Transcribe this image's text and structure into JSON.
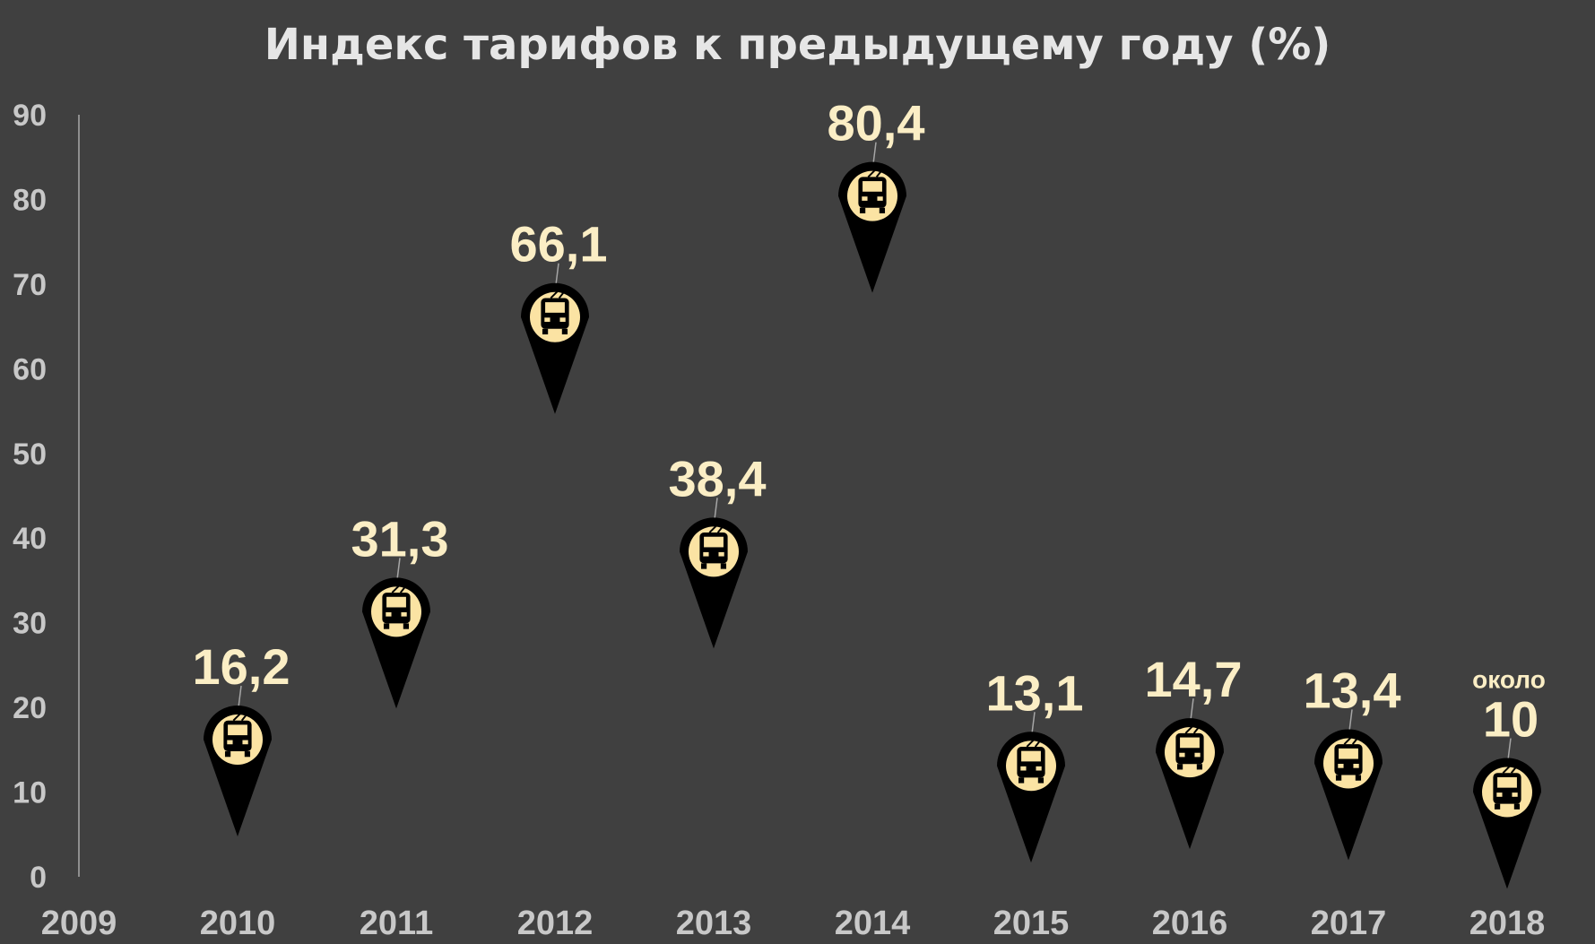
{
  "chart_data": {
    "type": "scatter",
    "title": "Индекс тарифов к предыдущему году (%)",
    "xlabel": "",
    "ylabel": "",
    "ylim": [
      0,
      90
    ],
    "y_ticks": [
      "0",
      "10",
      "20",
      "30",
      "40",
      "50",
      "60",
      "70",
      "80",
      "90"
    ],
    "x_ticks": [
      "2009",
      "2010",
      "2011",
      "2012",
      "2013",
      "2014",
      "2015",
      "2016",
      "2017",
      "2018"
    ],
    "grid": false,
    "marker": "map-pin-with-trolleybus-icon",
    "colors": {
      "background": "#404040",
      "pin": "#000000",
      "icon_circle": "#fbe3a3",
      "label": "#fbeec5",
      "axis_text": "#c8c8c8",
      "leader_line": "#a6a6a6"
    },
    "points": [
      {
        "x": "2010",
        "y": 16.2,
        "label": "16,2",
        "note": ""
      },
      {
        "x": "2011",
        "y": 31.3,
        "label": "31,3",
        "note": ""
      },
      {
        "x": "2012",
        "y": 66.1,
        "label": "66,1",
        "note": ""
      },
      {
        "x": "2013",
        "y": 38.4,
        "label": "38,4",
        "note": ""
      },
      {
        "x": "2014",
        "y": 80.4,
        "label": "80,4",
        "note": ""
      },
      {
        "x": "2015",
        "y": 13.1,
        "label": "13,1",
        "note": ""
      },
      {
        "x": "2016",
        "y": 14.7,
        "label": "14,7",
        "note": ""
      },
      {
        "x": "2017",
        "y": 13.4,
        "label": "13,4",
        "note": ""
      },
      {
        "x": "2018",
        "y": 10,
        "label": "10",
        "note": "около"
      }
    ]
  }
}
